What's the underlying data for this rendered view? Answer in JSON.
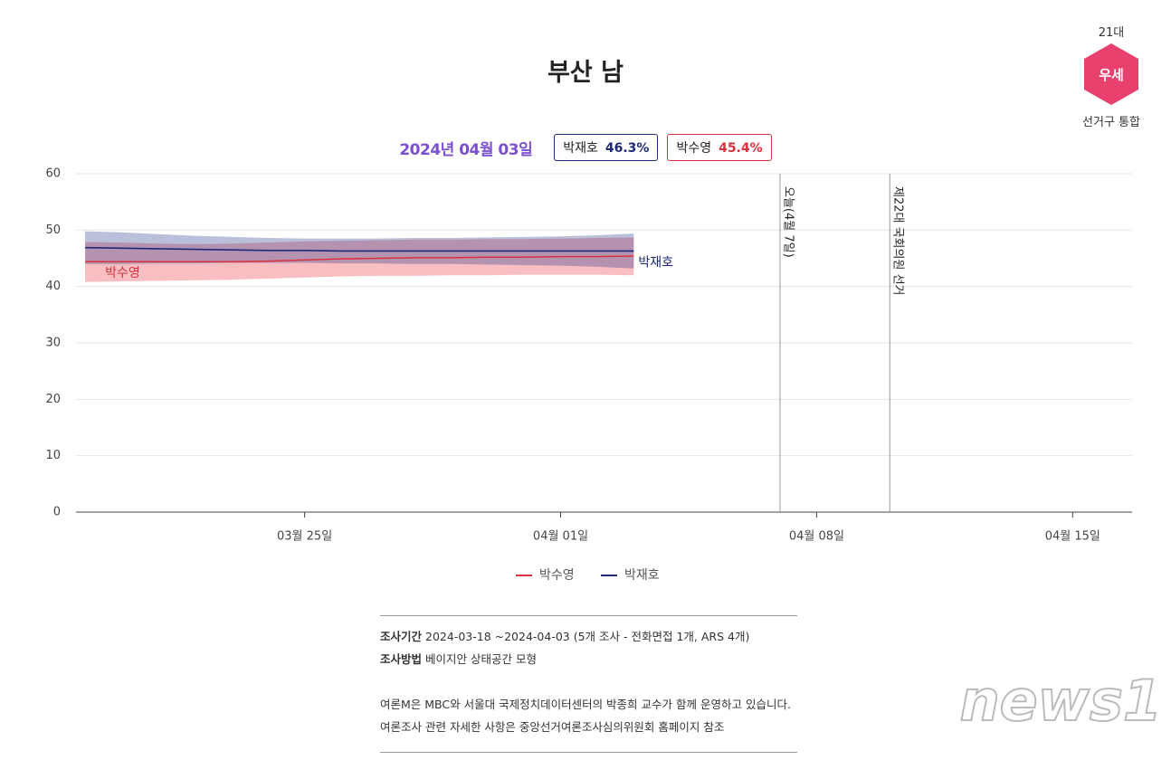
{
  "header": {
    "title": "부산 남",
    "badge_top": "21대",
    "badge": "우세",
    "badge_bottom": "선거구 통합"
  },
  "summary": {
    "date": "2024년 04월 03일",
    "items": [
      {
        "name": "박재호",
        "value": 46.3,
        "value_label": "46.3%",
        "color": "#1e2a78"
      },
      {
        "name": "박수영",
        "value": 45.4,
        "value_label": "45.4%",
        "color": "#d9323f"
      }
    ]
  },
  "chart_data": {
    "type": "line",
    "x": [
      "2024-03-19",
      "2024-03-20",
      "2024-03-21",
      "2024-03-22",
      "2024-03-23",
      "2024-03-24",
      "2024-03-25",
      "2024-03-26",
      "2024-03-27",
      "2024-03-28",
      "2024-03-29",
      "2024-03-30",
      "2024-03-31",
      "2024-04-01",
      "2024-04-02",
      "2024-04-03"
    ],
    "series": [
      {
        "name": "박수영",
        "color": "#d9323f",
        "band_color": "rgba(240,110,120,0.45)",
        "values": [
          44.4,
          44.4,
          44.4,
          44.4,
          44.4,
          44.5,
          44.7,
          44.9,
          45.0,
          45.1,
          45.1,
          45.2,
          45.2,
          45.3,
          45.3,
          45.4
        ],
        "upper": [
          47.9,
          47.8,
          47.6,
          47.5,
          47.6,
          47.8,
          48.0,
          48.1,
          48.2,
          48.3,
          48.3,
          48.4,
          48.4,
          48.5,
          48.6,
          48.7
        ],
        "lower": [
          40.8,
          40.9,
          41.0,
          41.1,
          41.2,
          41.4,
          41.6,
          41.8,
          41.9,
          41.9,
          42.0,
          42.0,
          42.1,
          42.1,
          42.1,
          42.0
        ]
      },
      {
        "name": "박재호",
        "color": "#1e2a78",
        "band_color": "rgba(40,55,140,0.32)",
        "values": [
          46.9,
          46.8,
          46.7,
          46.6,
          46.5,
          46.4,
          46.4,
          46.3,
          46.3,
          46.3,
          46.3,
          46.3,
          46.3,
          46.3,
          46.3,
          46.3
        ],
        "upper": [
          49.8,
          49.6,
          49.3,
          49.0,
          48.8,
          48.6,
          48.5,
          48.5,
          48.5,
          48.6,
          48.6,
          48.7,
          48.8,
          48.9,
          49.1,
          49.4
        ],
        "lower": [
          44.0,
          44.0,
          44.1,
          44.1,
          44.2,
          44.2,
          44.2,
          44.1,
          44.1,
          44.0,
          44.0,
          43.9,
          43.8,
          43.7,
          43.5,
          43.2
        ]
      }
    ],
    "xlim": [
      "2024-03-18T18:00",
      "2024-04-16T15:00"
    ],
    "xticks": [
      {
        "value": "2024-03-25",
        "label": "03월 25일"
      },
      {
        "value": "2024-04-01",
        "label": "04월 01일"
      },
      {
        "value": "2024-04-08",
        "label": "04월 08일"
      },
      {
        "value": "2024-04-15",
        "label": "04월 15일"
      }
    ],
    "ylim": [
      0,
      60
    ],
    "yticks": [
      0,
      10,
      20,
      30,
      40,
      50,
      60
    ],
    "grid": true,
    "annotations": [
      {
        "x": "2024-04-07",
        "label": "오늘(4월 7일)"
      },
      {
        "x": "2024-04-10",
        "label": "제22대 국회의원 선거"
      }
    ]
  },
  "footer": {
    "period_label": "조사기간",
    "period": "2024-03-18 ~2024-04-03 (5개 조사 - 전화면접 1개, ARS 4개)",
    "method_label": "조사방법",
    "method": "베이지안 상태공간 모형",
    "note1": "여론M은 MBC와 서울대 국제정치데이터센터의 박종희 교수가 함께 운영하고 있습니다.",
    "note2": "여론조사 관련 자세한 사항은 중앙선거여론조사심의위원회 홈페이지 참조"
  },
  "watermark": "news1"
}
